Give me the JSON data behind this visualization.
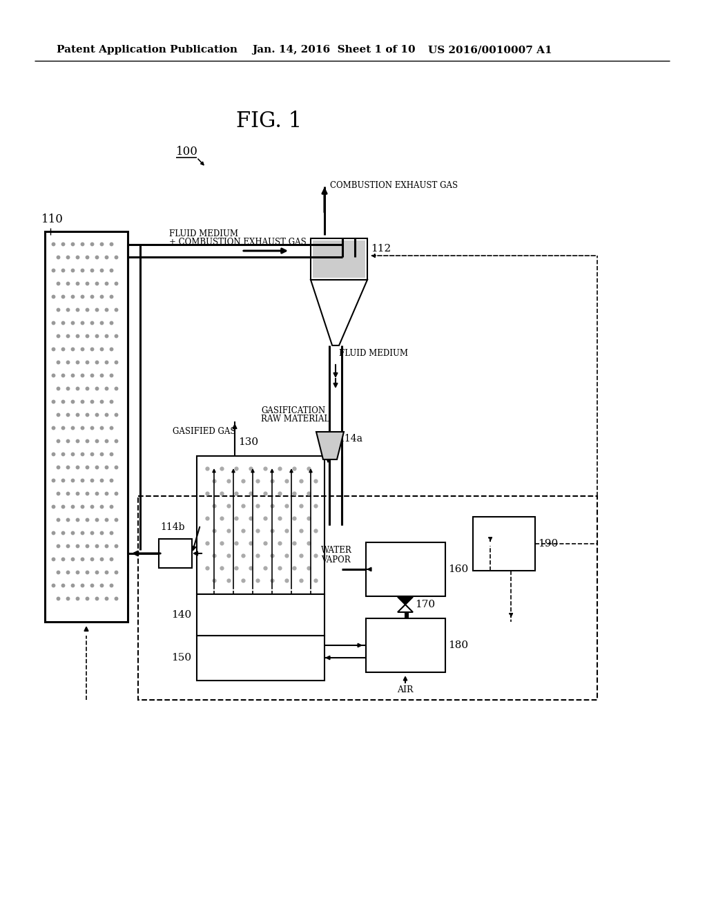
{
  "title": "FIG. 1",
  "header_left": "Patent Application Publication",
  "header_center": "Jan. 14, 2016  Sheet 1 of 10",
  "header_right": "US 2016/0010007 A1",
  "bg_color": "#ffffff",
  "line_color": "#000000"
}
